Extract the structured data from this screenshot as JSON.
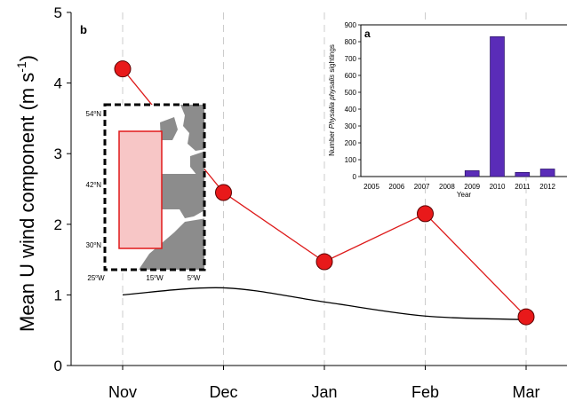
{
  "chart_data": [
    {
      "panel": "b",
      "type": "line",
      "categories": [
        "Nov",
        "Dec",
        "Jan",
        "Feb",
        "Mar"
      ],
      "series": [
        {
          "values": [
            4.2,
            2.45,
            1.47,
            2.15,
            0.69
          ],
          "color": "#dd1a1a",
          "marker": "circle"
        },
        {
          "values": [
            1.0,
            1.1,
            0.9,
            0.7,
            0.65
          ],
          "color": "#000000",
          "marker": "none",
          "smooth": true
        }
      ],
      "title": "",
      "xlabel": "",
      "ylabel": "Mean U wind component (m s",
      "ylabel_sup": "-1",
      "ylabel_close": ")",
      "ylim": [
        0,
        5
      ],
      "yticks": [
        "0",
        "1",
        "2",
        "3",
        "4",
        "5"
      ],
      "grid": "vertical dashed"
    },
    {
      "panel": "a",
      "type": "bar",
      "categories": [
        "2005",
        "2006",
        "2007",
        "2008",
        "2009",
        "2010",
        "2011",
        "2012"
      ],
      "values": [
        0,
        0,
        0,
        0,
        35,
        830,
        25,
        45
      ],
      "color": "#5a2cb8",
      "xlabel": "Year",
      "ylabel_prefix": "Number ",
      "ylabel_italic": "Physalia physalis",
      "ylabel_suffix": " sightings",
      "ylim": [
        0,
        900
      ],
      "yticks": [
        "0",
        "100",
        "200",
        "300",
        "400",
        "500",
        "600",
        "700",
        "800",
        "900"
      ]
    }
  ],
  "map_inset": {
    "lat_labels": [
      {
        "deg": "54",
        "hemi": "N"
      },
      {
        "deg": "42",
        "hemi": "N"
      },
      {
        "deg": "30",
        "hemi": "N"
      }
    ],
    "lon_labels": [
      {
        "deg": "25",
        "hemi": "W"
      },
      {
        "deg": "15",
        "hemi": "W"
      },
      {
        "deg": "5",
        "hemi": "W"
      }
    ],
    "degree_symbol": "o",
    "land_color": "#8c8c8c",
    "box_color": "#e0191a",
    "box_fill": "#f7c6c6"
  }
}
